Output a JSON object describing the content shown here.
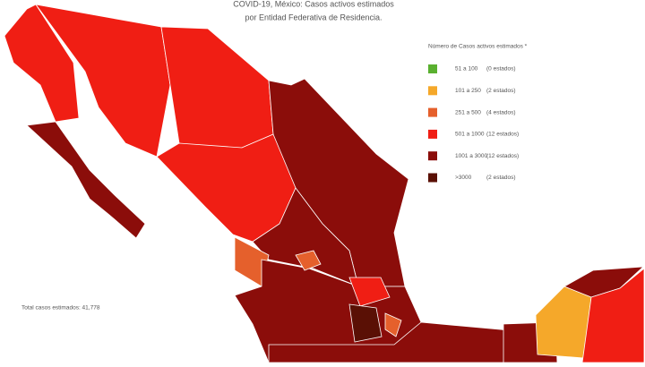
{
  "header": {
    "title_line1": "COVID-19, México: Casos activos estimados",
    "title_line2": "por Entidad Federativa de Residencia."
  },
  "legend": {
    "title": "Número de Casos activos estimados *",
    "items": [
      {
        "range": "51  a  100",
        "count": "(0 estados)",
        "color": "#5ab030"
      },
      {
        "range": "101  a  250",
        "count": "(2 estados)",
        "color": "#f5a82a"
      },
      {
        "range": "251  a  500",
        "count": "(4 estados)",
        "color": "#e5602c"
      },
      {
        "range": "501  a 1000",
        "count": "(12 estados)",
        "color": "#f01e14"
      },
      {
        "range": "1001  a  3000",
        "count": "(12 estados)",
        "color": "#8b0d0a"
      },
      {
        "range": ">3000",
        "count": "(2 estados)",
        "color": "#5a1005"
      }
    ]
  },
  "footer": {
    "total": "Total casos estimados: 41,778"
  }
}
